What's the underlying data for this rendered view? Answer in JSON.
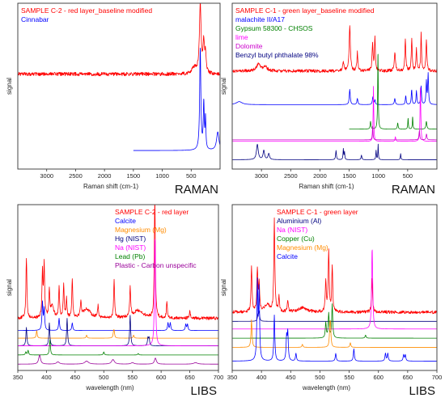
{
  "chart_data": [
    {
      "type": "line",
      "panel": "top-left",
      "method_label": "RAMAN",
      "xlabel": "Raman shift (cm-1)",
      "ylabel": "signal",
      "xlim": [
        3500,
        0
      ],
      "x_reversed": true,
      "x_ticks": [
        "3000",
        "2500",
        "2000",
        "1500",
        "1000",
        "500"
      ],
      "legend": [
        {
          "name": "SAMPLE C-2 - red layer_baseline modified",
          "color": "#ff0000"
        },
        {
          "name": "Cinnabar",
          "color": "#0000ff"
        }
      ],
      "series": [
        {
          "name": "SAMPLE C-2 - red layer_baseline modified",
          "color": "#ff0000",
          "baseline": 0.6,
          "noise": 0.012,
          "peaks": [
            [
              343,
              0.45,
              18
            ],
            [
              282,
              0.2,
              15
            ],
            [
              252,
              0.12,
              12
            ],
            [
              450,
              0.04,
              40
            ]
          ]
        },
        {
          "name": "Cinnabar",
          "color": "#0000ff",
          "baseline": 0.1,
          "noise": 0.0,
          "xmin": 0,
          "xmax": 1500,
          "peaks": [
            [
              343,
              0.66,
              12
            ],
            [
              282,
              0.3,
              10
            ],
            [
              252,
              0.2,
              8
            ],
            [
              40,
              0.12,
              25
            ]
          ]
        }
      ]
    },
    {
      "type": "line",
      "panel": "top-right",
      "method_label": "RAMAN",
      "xlabel": "Raman shift (cm-1)",
      "ylabel": "signal",
      "xlim": [
        3500,
        0
      ],
      "x_reversed": true,
      "x_ticks": [
        "3000",
        "2500",
        "2000",
        "1500",
        "1000",
        "500"
      ],
      "legend": [
        {
          "name": "SAMPLE C-1 - green layer_baseline modified",
          "color": "#ff0000"
        },
        {
          "name": "malachite II/A17",
          "color": "#0000ff"
        },
        {
          "name": "Gypsum 58300 - CHSOS",
          "color": "#008000"
        },
        {
          "name": "lime",
          "color": "#ff00ff"
        },
        {
          "name": "Dolomite",
          "color": "#cc00cc"
        },
        {
          "name": "Benzyl butyl phthalate 98%",
          "color": "#000080"
        }
      ],
      "series": [
        {
          "name": "SAMPLE C-1 - green layer_baseline modified",
          "color": "#ff0000",
          "baseline": 0.62,
          "noise": 0.01,
          "peaks": [
            [
              3050,
              0.05,
              40
            ],
            [
              2930,
              0.03,
              30
            ],
            [
              1600,
              0.05,
              15
            ],
            [
              1490,
              0.3,
              12
            ],
            [
              1360,
              0.12,
              10
            ],
            [
              1100,
              0.18,
              10
            ],
            [
              1060,
              0.22,
              9
            ],
            [
              720,
              0.12,
              12
            ],
            [
              540,
              0.2,
              10
            ],
            [
              430,
              0.22,
              9
            ],
            [
              350,
              0.14,
              9
            ],
            [
              270,
              0.25,
              8
            ],
            [
              180,
              0.2,
              10
            ]
          ]
        },
        {
          "name": "malachite II/A17",
          "color": "#0000ff",
          "baseline": 0.4,
          "noise": 0.0,
          "peaks": [
            [
              3380,
              0.02,
              60
            ],
            [
              1490,
              0.1,
              10
            ],
            [
              1360,
              0.04,
              10
            ],
            [
              1095,
              0.05,
              10
            ],
            [
              1060,
              0.03,
              8
            ],
            [
              720,
              0.04,
              10
            ],
            [
              533,
              0.06,
              8
            ],
            [
              432,
              0.1,
              8
            ],
            [
              350,
              0.09,
              8
            ],
            [
              270,
              0.12,
              8
            ],
            [
              180,
              0.15,
              8
            ],
            [
              150,
              0.2,
              8
            ]
          ]
        },
        {
          "name": "Gypsum 58300 - CHSOS",
          "color": "#008000",
          "baseline": 0.24,
          "noise": 0.0,
          "xmin": 0,
          "xmax": 1500,
          "peaks": [
            [
              1008,
              0.5,
              6
            ],
            [
              1135,
              0.05,
              8
            ],
            [
              670,
              0.04,
              8
            ],
            [
              493,
              0.07,
              6
            ],
            [
              415,
              0.08,
              6
            ],
            [
              180,
              0.05,
              10
            ]
          ]
        },
        {
          "name": "lime",
          "color": "#ff00ff",
          "baseline": 0.16,
          "noise": 0.0,
          "peaks": [
            [
              1085,
              0.36,
              6
            ],
            [
              282,
              0.38,
              7
            ],
            [
              710,
              0.03,
              8
            ]
          ]
        },
        {
          "name": "Dolomite",
          "color": "#cc00cc",
          "baseline": 0.17,
          "noise": 0.0,
          "peaks": [
            [
              1098,
              0.1,
              6
            ],
            [
              300,
              0.06,
              8
            ],
            [
              178,
              0.04,
              8
            ]
          ]
        },
        {
          "name": "Benzyl butyl phthalate 98%",
          "color": "#000080",
          "baseline": 0.04,
          "noise": 0.0,
          "peaks": [
            [
              3070,
              0.1,
              18
            ],
            [
              2960,
              0.06,
              15
            ],
            [
              2875,
              0.04,
              15
            ],
            [
              1725,
              0.06,
              8
            ],
            [
              1600,
              0.07,
              6
            ],
            [
              1580,
              0.05,
              6
            ],
            [
              1290,
              0.03,
              8
            ],
            [
              1040,
              0.06,
              6
            ],
            [
              1005,
              0.1,
              5
            ],
            [
              620,
              0.04,
              6
            ]
          ]
        }
      ]
    },
    {
      "type": "line",
      "panel": "bottom-left",
      "method_label": "LIBS",
      "xlabel": "wavelength (nm)",
      "ylabel": "signal",
      "xlim": [
        350,
        700
      ],
      "x_ticks": [
        "350",
        "400",
        "450",
        "500",
        "550",
        "600",
        "650",
        "700"
      ],
      "legend": [
        {
          "name": "SAMPLE C-2 - red layer",
          "color": "#ff0000"
        },
        {
          "name": "Calcite",
          "color": "#0000ff"
        },
        {
          "name": "Magnesium (Mg)",
          "color": "#ff8c00"
        },
        {
          "name": "Hg (NIST)",
          "color": "#000080"
        },
        {
          "name": "Na (NIST)",
          "color": "#ff00ff"
        },
        {
          "name": "Lead (Pb)",
          "color": "#008000"
        },
        {
          "name": "Plastic - Carbon unspecific",
          "color": "#990099"
        }
      ],
      "series": [
        {
          "name": "SAMPLE C-2 - red layer",
          "color": "#ff0000",
          "baseline": 0.32,
          "noise": 0.01,
          "peaks": [
            [
              365,
              0.4,
              1
            ],
            [
              393,
              0.3,
              1
            ],
            [
              396,
              0.35,
              1
            ],
            [
              405,
              0.18,
              1
            ],
            [
              422,
              0.2,
              1
            ],
            [
              430,
              0.22,
              1
            ],
            [
              435,
              0.12,
              1
            ],
            [
              445,
              0.25,
              1
            ],
            [
              460,
              0.1,
              1
            ],
            [
              490,
              0.08,
              1
            ],
            [
              518,
              0.25,
              1
            ],
            [
              546,
              0.2,
              1
            ],
            [
              589,
              0.8,
              1
            ],
            [
              610,
              0.1,
              1
            ],
            [
              650,
              0.05,
              1
            ],
            [
              410,
              0.08,
              3
            ],
            [
              470,
              0.06,
              8
            ],
            [
              560,
              0.05,
              10
            ]
          ]
        },
        {
          "name": "Calcite",
          "color": "#0000ff",
          "baseline": 0.24,
          "noise": 0.0,
          "peaks": [
            [
              393,
              0.18,
              1
            ],
            [
              396,
              0.14,
              1
            ],
            [
              422,
              0.08,
              1
            ],
            [
              445,
              0.05,
              1
            ],
            [
              612,
              0.05,
              1
            ],
            [
              616,
              0.05,
              1
            ],
            [
              643,
              0.04,
              1
            ],
            [
              646,
              0.04,
              1
            ]
          ]
        },
        {
          "name": "Magnesium (Mg)",
          "color": "#ff8c00",
          "baseline": 0.19,
          "noise": 0.0,
          "peaks": [
            [
              383,
              0.05,
              1
            ],
            [
              470,
              0.02,
              1
            ],
            [
              517,
              0.03,
              1
            ],
            [
              518,
              0.04,
              1
            ],
            [
              552,
              0.02,
              1
            ]
          ]
        },
        {
          "name": "Hg (NIST)",
          "color": "#000080",
          "baseline": 0.14,
          "noise": 0.0,
          "peaks": [
            [
              365,
              0.12,
              1
            ],
            [
              405,
              0.15,
              1
            ],
            [
              436,
              0.18,
              1
            ],
            [
              546,
              0.2,
              1
            ],
            [
              577,
              0.05,
              1
            ],
            [
              579,
              0.05,
              1
            ]
          ]
        },
        {
          "name": "Na (NIST)",
          "color": "#ff00ff",
          "baseline": 0.14,
          "noise": 0.0,
          "peaks": [
            [
              589,
              0.4,
              1
            ],
            [
              589.6,
              0.38,
              1
            ]
          ]
        },
        {
          "name": "Lead (Pb)",
          "color": "#008000",
          "baseline": 0.08,
          "noise": 0.0,
          "peaks": [
            [
              364,
              0.02,
              1
            ],
            [
              368,
              0.03,
              1
            ],
            [
              406,
              0.1,
              1
            ],
            [
              500,
              0.02,
              1
            ],
            [
              560,
              0.01,
              1
            ]
          ]
        },
        {
          "name": "Plastic - Carbon unspecific",
          "color": "#990099",
          "baseline": 0.02,
          "noise": 0.0,
          "peaks": [
            [
              388,
              0.06,
              2
            ],
            [
              420,
              0.015,
              3
            ],
            [
              470,
              0.02,
              4
            ],
            [
              516,
              0.03,
              3
            ],
            [
              550,
              0.01,
              3
            ],
            [
              590,
              0.04,
              2
            ],
            [
              660,
              0.01,
              4
            ]
          ]
        }
      ]
    },
    {
      "type": "line",
      "panel": "bottom-right",
      "method_label": "LIBS",
      "xlabel": "wavelength (nm)",
      "ylabel": "signal",
      "xlim": [
        350,
        700
      ],
      "x_ticks": [
        "350",
        "400",
        "450",
        "500",
        "550",
        "600",
        "650",
        "700"
      ],
      "legend": [
        {
          "name": "SAMPLE C-1 - green layer",
          "color": "#ff0000"
        },
        {
          "name": "Aluminium (Al)",
          "color": "#000080"
        },
        {
          "name": "Na (NIST)",
          "color": "#ff00ff"
        },
        {
          "name": "Copper (Cu)",
          "color": "#008000"
        },
        {
          "name": "Magnesium (Mg)",
          "color": "#ff8c00"
        },
        {
          "name": "Calcite",
          "color": "#0000ff"
        }
      ],
      "series": [
        {
          "name": "SAMPLE C-1 - green layer",
          "color": "#ff0000",
          "baseline": 0.36,
          "noise": 0.01,
          "peaks": [
            [
              383,
              0.3,
              1
            ],
            [
              393,
              0.28,
              1
            ],
            [
              396,
              0.18,
              1
            ],
            [
              422,
              0.6,
              1
            ],
            [
              430,
              0.1,
              1
            ],
            [
              445,
              0.08,
              1
            ],
            [
              510,
              0.2,
              1
            ],
            [
              515,
              0.4,
              1
            ],
            [
              521,
              0.3,
              1
            ],
            [
              589,
              0.22,
              1
            ],
            [
              410,
              0.05,
              5
            ],
            [
              470,
              0.03,
              8
            ]
          ]
        },
        {
          "name": "Aluminium (Al)",
          "color": "#000080",
          "baseline": 0.3,
          "noise": 0.0,
          "peaks": [
            [
              394,
              0.04,
              1
            ],
            [
              396,
              0.06,
              1
            ]
          ]
        },
        {
          "name": "Na (NIST)",
          "color": "#ff00ff",
          "baseline": 0.25,
          "noise": 0.0,
          "peaks": [
            [
              589,
              0.3,
              1
            ],
            [
              589.6,
              0.28,
              1
            ]
          ]
        },
        {
          "name": "Copper (Cu)",
          "color": "#008000",
          "baseline": 0.19,
          "noise": 0.0,
          "peaks": [
            [
              510,
              0.1,
              1
            ],
            [
              515,
              0.16,
              1
            ],
            [
              521,
              0.22,
              1
            ],
            [
              578,
              0.02,
              1
            ]
          ]
        },
        {
          "name": "Magnesium (Mg)",
          "color": "#ff8c00",
          "baseline": 0.13,
          "noise": 0.0,
          "peaks": [
            [
              383,
              0.18,
              1
            ],
            [
              470,
              0.02,
              1
            ],
            [
              517,
              0.1,
              1
            ],
            [
              518,
              0.12,
              1
            ],
            [
              552,
              0.03,
              1
            ]
          ]
        },
        {
          "name": "Calcite",
          "color": "#0000ff",
          "baseline": 0.04,
          "noise": 0.0,
          "peaks": [
            [
              393,
              0.5,
              1
            ],
            [
              396,
              0.45,
              1
            ],
            [
              422,
              0.3,
              1
            ],
            [
              443,
              0.15,
              1
            ],
            [
              445,
              0.18,
              1
            ],
            [
              459,
              0.05,
              1
            ],
            [
              527,
              0.05,
              1
            ],
            [
              558,
              0.08,
              1
            ],
            [
              612,
              0.05,
              1
            ],
            [
              616,
              0.05,
              1
            ],
            [
              643,
              0.04,
              1
            ],
            [
              646,
              0.04,
              1
            ]
          ]
        }
      ]
    }
  ]
}
